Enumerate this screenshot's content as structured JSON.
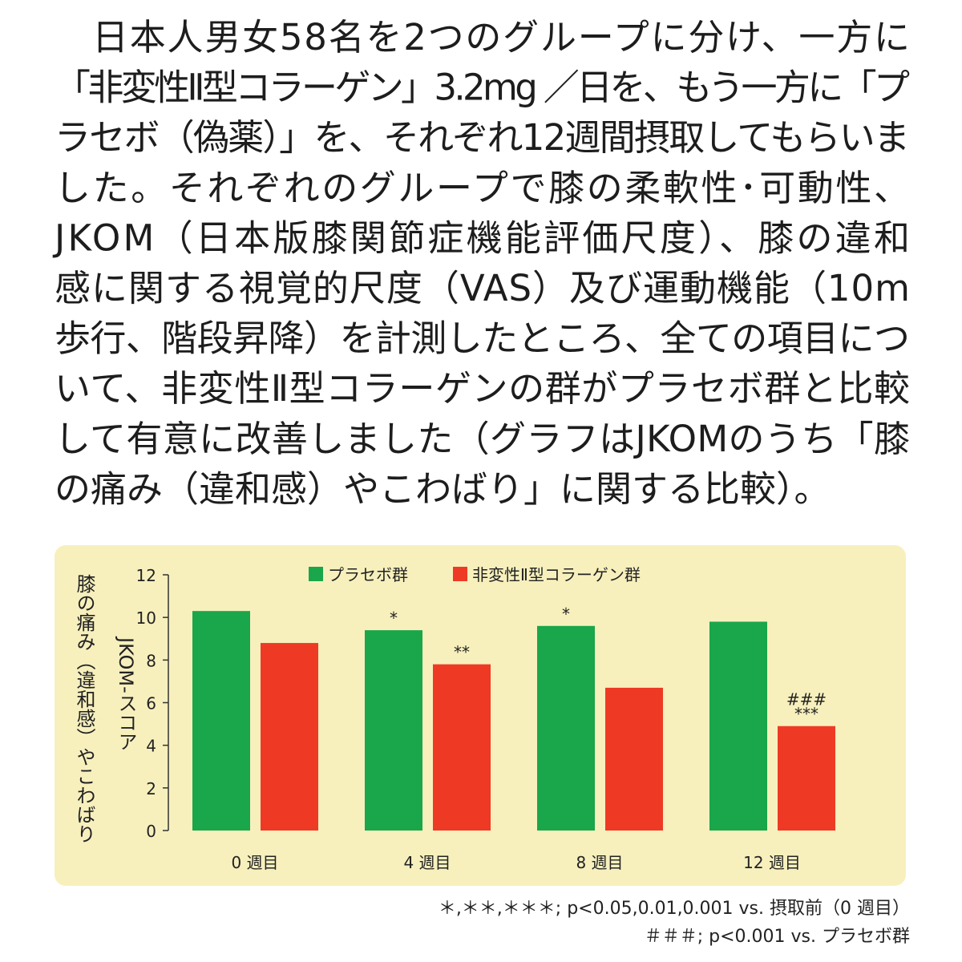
{
  "paragraph": [
    "日本人男女58名を2つのグループに分け、一方に",
    "「非変性Ⅱ型コラーゲン」3.2mg ／日を、もう一方に「プ",
    "ラセボ（偽薬）」を、それぞれ12週間摂取してもらいま",
    "した。それぞれのグループで膝の柔軟性･可動性、",
    "JKOM（日本版膝関節症機能評価尺度）、膝の違和",
    "感に関する視覚的尺度（VAS）及び運動機能（10m",
    "歩行、階段昇降）を計測したところ、全ての項目につ",
    "いて、非変性Ⅱ型コラーゲンの群がプラセボ群と比較",
    "して有意に改善しました（グラフはJKOMのうち「膝",
    "の痛み（違和感）やこわばり」に関する比較）。"
  ],
  "chart_data": {
    "type": "bar",
    "y_label": [
      "膝の痛み（違和感）やこわばり",
      "JKOM-スコア"
    ],
    "categories": [
      "0 週目",
      "4 週目",
      "8 週目",
      "12 週目"
    ],
    "series": [
      {
        "name": "プラセボ群",
        "color": "#1aa64a",
        "values": [
          10.3,
          9.4,
          9.6,
          9.8
        ],
        "marks": [
          null,
          [
            "*"
          ],
          [
            "*"
          ],
          null
        ]
      },
      {
        "name": "非変性Ⅱ型コラーゲン群",
        "color": "#ee3a24",
        "values": [
          8.8,
          7.8,
          6.7,
          4.9
        ],
        "marks": [
          null,
          [
            "**"
          ],
          null,
          [
            "###",
            "***"
          ]
        ]
      }
    ],
    "ylim": [
      0,
      12
    ],
    "yticks": [
      0,
      2,
      4,
      6,
      8,
      10,
      12
    ]
  },
  "footnotes": [
    "＊,＊＊,＊＊＊; p<0.05,0.01,0.001 vs. 摂取前（0 週目）",
    "＃＃＃; p<0.001 vs. プラセボ群"
  ]
}
